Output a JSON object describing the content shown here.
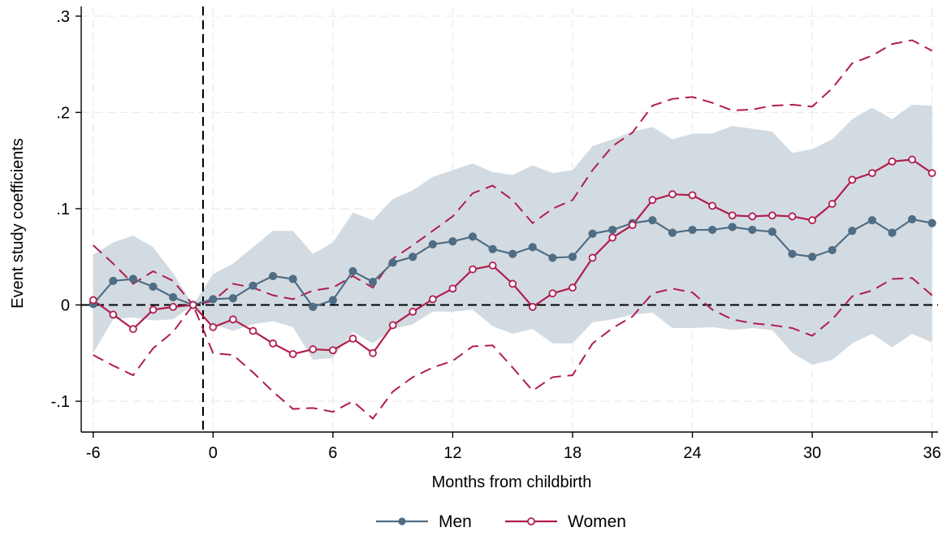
{
  "chart_data": {
    "type": "line",
    "xlabel": "Months from childbirth",
    "ylabel": "Event study coefficients",
    "xlim": [
      -6.6,
      36.3
    ],
    "ylim": [
      -0.132,
      0.31
    ],
    "xticks": [
      -6,
      0,
      6,
      12,
      18,
      24,
      30,
      36
    ],
    "xtick_labels": [
      "-6",
      "0",
      "6",
      "12",
      "18",
      "24",
      "30",
      "36"
    ],
    "yticks": [
      -0.1,
      0,
      0.1,
      0.2,
      0.3
    ],
    "ytick_labels": [
      "-.1",
      "0",
      ".1",
      ".2",
      ".3"
    ],
    "grid": true,
    "reference_lines": {
      "x": -0.5,
      "y": 0
    },
    "legend_position": "bottom",
    "x": [
      -6,
      -5,
      -4,
      -3,
      -2,
      -1,
      0,
      1,
      2,
      3,
      4,
      5,
      6,
      7,
      8,
      9,
      10,
      11,
      12,
      13,
      14,
      15,
      16,
      17,
      18,
      19,
      20,
      21,
      22,
      23,
      24,
      25,
      26,
      27,
      28,
      29,
      30,
      31,
      32,
      33,
      34,
      35,
      36
    ],
    "series": [
      {
        "name": "Men",
        "color": "#4f6d84",
        "marker": "filled-circle",
        "values": [
          0.001,
          0.025,
          0.027,
          0.019,
          0.008,
          0.0,
          0.006,
          0.007,
          0.02,
          0.03,
          0.027,
          -0.002,
          0.005,
          0.035,
          0.024,
          0.044,
          0.05,
          0.063,
          0.066,
          0.071,
          0.058,
          0.053,
          0.06,
          0.049,
          0.05,
          0.074,
          0.078,
          0.085,
          0.088,
          0.075,
          0.078,
          0.078,
          0.081,
          0.078,
          0.076,
          0.053,
          0.05,
          0.057,
          0.077,
          0.088,
          0.075,
          0.089,
          0.085
        ],
        "ci_lower": [
          -0.05,
          -0.015,
          -0.013,
          -0.016,
          -0.015,
          0.0,
          -0.02,
          -0.027,
          -0.02,
          -0.017,
          -0.023,
          -0.057,
          -0.055,
          -0.028,
          -0.04,
          -0.025,
          -0.02,
          -0.007,
          -0.007,
          -0.005,
          -0.022,
          -0.03,
          -0.025,
          -0.04,
          -0.04,
          -0.018,
          -0.015,
          -0.01,
          -0.008,
          -0.024,
          -0.024,
          -0.023,
          -0.026,
          -0.024,
          -0.026,
          -0.05,
          -0.062,
          -0.057,
          -0.04,
          -0.03,
          -0.044,
          -0.03,
          -0.039
        ],
        "ci_upper": [
          0.052,
          0.065,
          0.072,
          0.06,
          0.033,
          0.0,
          0.032,
          0.043,
          0.06,
          0.077,
          0.077,
          0.053,
          0.065,
          0.096,
          0.088,
          0.11,
          0.119,
          0.133,
          0.14,
          0.147,
          0.138,
          0.135,
          0.145,
          0.137,
          0.14,
          0.165,
          0.172,
          0.18,
          0.185,
          0.172,
          0.178,
          0.178,
          0.186,
          0.183,
          0.18,
          0.158,
          0.162,
          0.172,
          0.193,
          0.205,
          0.193,
          0.208,
          0.207
        ]
      },
      {
        "name": "Women",
        "color": "#b01e4f",
        "marker": "hollow-circle",
        "values": [
          0.005,
          -0.01,
          -0.025,
          -0.005,
          -0.002,
          0.0,
          -0.023,
          -0.015,
          -0.027,
          -0.04,
          -0.051,
          -0.046,
          -0.047,
          -0.035,
          -0.05,
          -0.021,
          -0.007,
          0.006,
          0.017,
          0.037,
          0.041,
          0.022,
          -0.002,
          0.012,
          0.018,
          0.049,
          0.07,
          0.083,
          0.109,
          0.115,
          0.114,
          0.103,
          0.093,
          0.092,
          0.093,
          0.092,
          0.088,
          0.105,
          0.13,
          0.137,
          0.149,
          0.151,
          0.137
        ],
        "ci_lower": [
          -0.052,
          -0.063,
          -0.073,
          -0.045,
          -0.028,
          0.0,
          -0.05,
          -0.052,
          -0.07,
          -0.09,
          -0.108,
          -0.107,
          -0.111,
          -0.1,
          -0.118,
          -0.09,
          -0.075,
          -0.065,
          -0.058,
          -0.043,
          -0.042,
          -0.065,
          -0.089,
          -0.075,
          -0.073,
          -0.04,
          -0.024,
          -0.012,
          0.012,
          0.017,
          0.013,
          -0.005,
          -0.015,
          -0.019,
          -0.021,
          -0.024,
          -0.032,
          -0.015,
          0.009,
          0.015,
          0.027,
          0.028,
          0.01
        ],
        "ci_upper": [
          0.062,
          0.043,
          0.022,
          0.035,
          0.025,
          0.0,
          0.004,
          0.022,
          0.018,
          0.01,
          0.006,
          0.015,
          0.018,
          0.03,
          0.018,
          0.048,
          0.062,
          0.077,
          0.092,
          0.116,
          0.124,
          0.109,
          0.085,
          0.1,
          0.109,
          0.14,
          0.165,
          0.179,
          0.207,
          0.214,
          0.216,
          0.21,
          0.202,
          0.203,
          0.207,
          0.208,
          0.206,
          0.225,
          0.251,
          0.259,
          0.271,
          0.275,
          0.264
        ]
      }
    ]
  }
}
